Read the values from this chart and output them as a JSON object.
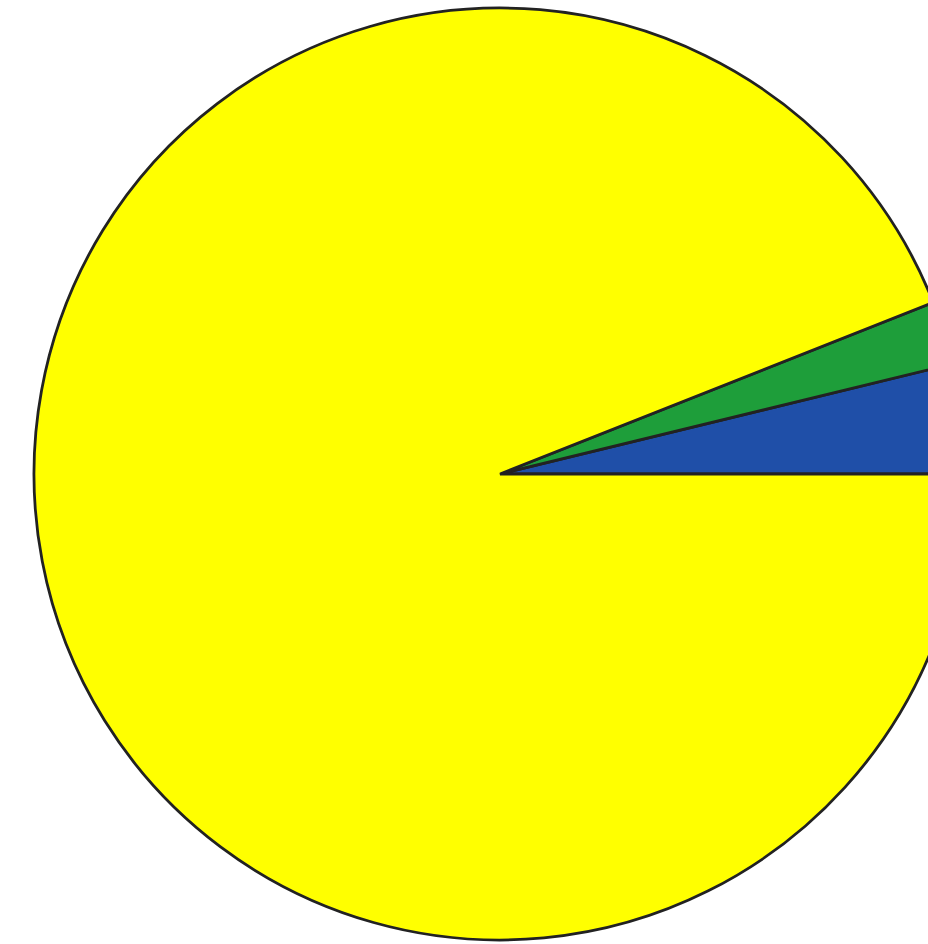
{
  "chart_data": {
    "type": "pie",
    "categories": [
      null,
      null,
      null
    ],
    "values": [
      3.8,
      2.2,
      94.0
    ],
    "colors": [
      "#1f4fa8",
      "#1e9e3a",
      "#ffff00"
    ]
  }
}
